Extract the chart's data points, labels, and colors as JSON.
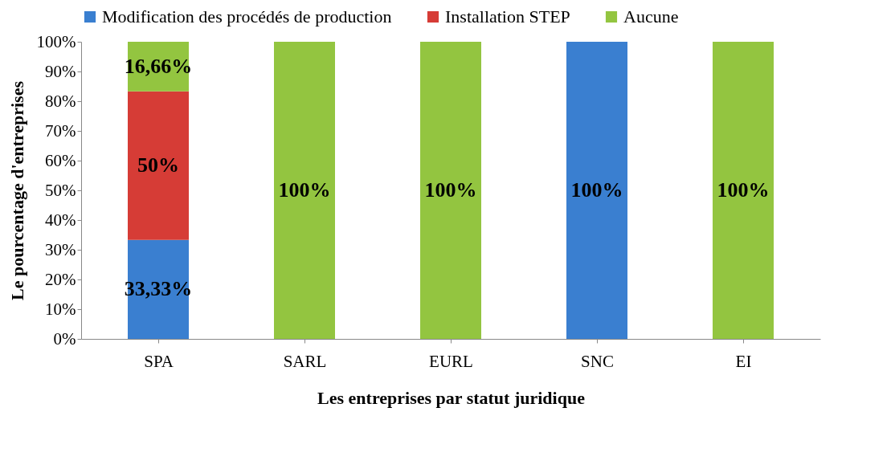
{
  "chart_data": {
    "type": "bar",
    "stacked": true,
    "xlabel": "Les entreprises par statut juridique",
    "ylabel": "Le pourcentage d'entreprises",
    "categories": [
      "SPA",
      "SARL",
      "EURL",
      "SNC",
      "EI"
    ],
    "series": [
      {
        "name": "Modification des procédés de production",
        "color": "#3a7fd0",
        "values": [
          33.33,
          0,
          0,
          100,
          0
        ],
        "value_labels": [
          "33,33%",
          null,
          null,
          "100%",
          null
        ]
      },
      {
        "name": "Installation STEP",
        "color": "#d63c36",
        "values": [
          50,
          0,
          0,
          0,
          0
        ],
        "value_labels": [
          "50%",
          null,
          null,
          null,
          null
        ]
      },
      {
        "name": "Aucune",
        "color": "#93c540",
        "values": [
          16.66,
          100,
          100,
          0,
          100
        ],
        "value_labels": [
          "16,66%",
          "100%",
          "100%",
          null,
          "100%"
        ]
      }
    ],
    "ylim": [
      0,
      100
    ],
    "yticks": [
      {
        "value": 0,
        "label": "0%"
      },
      {
        "value": 10,
        "label": "10%"
      },
      {
        "value": 20,
        "label": "20%"
      },
      {
        "value": 30,
        "label": "30%"
      },
      {
        "value": 40,
        "label": "40%"
      },
      {
        "value": 50,
        "label": "50%"
      },
      {
        "value": 60,
        "label": "60%"
      },
      {
        "value": 70,
        "label": "70%"
      },
      {
        "value": 80,
        "label": "80%"
      },
      {
        "value": 90,
        "label": "90%"
      },
      {
        "value": 100,
        "label": "100%"
      }
    ],
    "grid": false,
    "legend": "top"
  }
}
